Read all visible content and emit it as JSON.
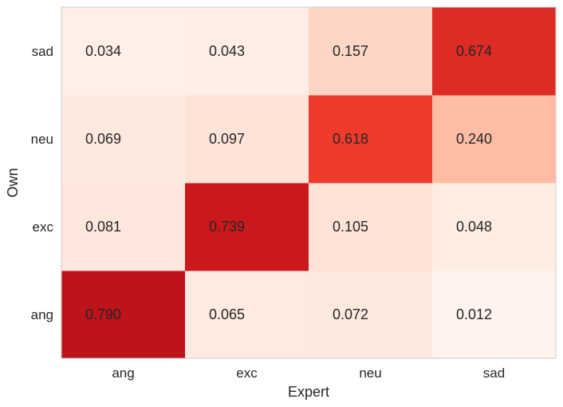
{
  "chart_data": {
    "type": "heatmap",
    "x_categories": [
      "ang",
      "exc",
      "neu",
      "sad"
    ],
    "y_categories": [
      "ang",
      "exc",
      "neu",
      "sad"
    ],
    "xlabel": "Expert",
    "ylabel": "Own",
    "values": [
      [
        0.79,
        0.065,
        0.072,
        0.012
      ],
      [
        0.081,
        0.739,
        0.105,
        0.048
      ],
      [
        0.069,
        0.097,
        0.618,
        0.24
      ],
      [
        0.034,
        0.043,
        0.157,
        0.674
      ]
    ],
    "labels": [
      [
        "0.790",
        "0.065",
        "0.072",
        "0.012"
      ],
      [
        "0.081",
        "0.739",
        "0.105",
        "0.048"
      ],
      [
        "0.069",
        "0.097",
        "0.618",
        "0.240"
      ],
      [
        "0.034",
        "0.043",
        "0.157",
        "0.674"
      ]
    ],
    "colormap": "Reds",
    "color_range": [
      0,
      0.79
    ],
    "grid": false
  }
}
